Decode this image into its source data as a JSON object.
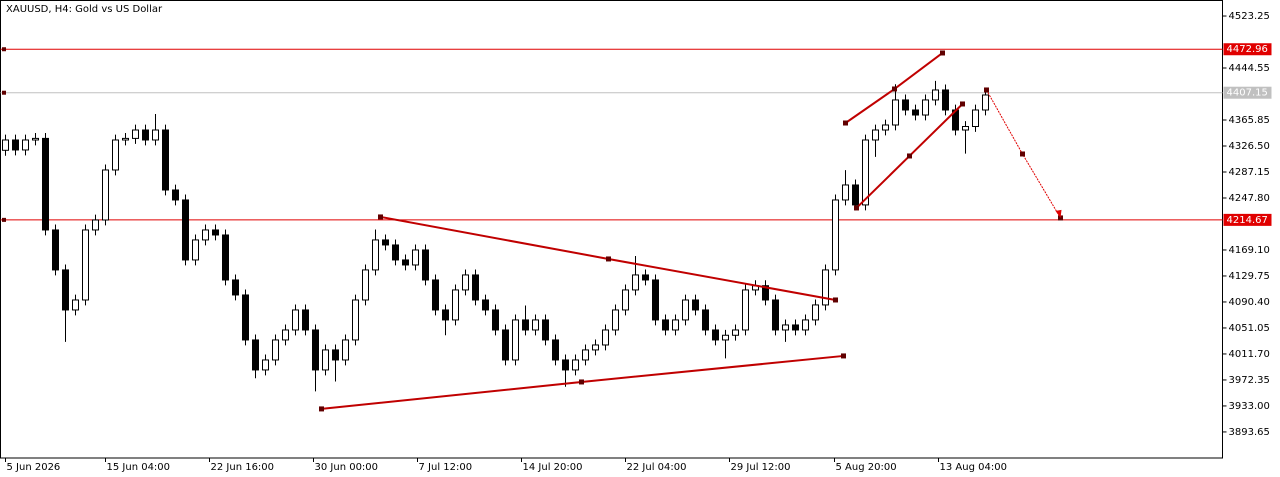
{
  "chart_data": {
    "type": "candlestick",
    "title": "XAUUSD, H4:  Gold vs US Dollar",
    "xlim": [
      -0.5,
      121.7
    ],
    "xticks": [
      {
        "value": 0,
        "label": "5 Jun 2026"
      },
      {
        "value": 10,
        "label": "15 Jun 04:00"
      },
      {
        "value": 20.4,
        "label": "22 Jun 16:00"
      },
      {
        "value": 30.8,
        "label": "30 Jun 00:00"
      },
      {
        "value": 41.2,
        "label": "7 Jul 12:00"
      },
      {
        "value": 51.6,
        "label": "14 Jul 20:00"
      },
      {
        "value": 62,
        "label": "22 Jul 04:00"
      },
      {
        "value": 72.4,
        "label": "29 Jul 12:00"
      },
      {
        "value": 82.9,
        "label": "5 Aug 20:00"
      },
      {
        "value": 93.3,
        "label": "13 Aug 04:00"
      }
    ],
    "ylim": [
      3854.2,
      4547.5
    ],
    "yticks": [
      4523.25,
      4444.55,
      4365.85,
      {
        "value": 4326.5,
        "label": "4326.50"
      },
      4287.15,
      {
        "value": 4247.8,
        "label": "4247.80"
      },
      {
        "value": 4169.1,
        "label": "4169.10"
      },
      4129.75,
      {
        "value": 4090.4,
        "label": "4090.40"
      },
      4051.05,
      {
        "value": 4011.7,
        "label": "4011.70"
      },
      3972.35,
      {
        "value": 3933,
        "label": "3933.00"
      },
      3893.65
    ],
    "up_color": "#ffffff",
    "down_color": "#000000",
    "open": [
      4320.0,
      4335.6,
      4320.5,
      4335.6,
      4338.0,
      4199.4,
      4138.9,
      4078.3,
      4093.4,
      4199.4,
      4214.5,
      4290.2,
      4335.6,
      4338.0,
      4350.7,
      4335.6,
      4350.7,
      4259.9,
      4244.8,
      4154.0,
      4184.3,
      4199.4,
      4191.8,
      4123.7,
      4101.0,
      4032.9,
      3987.5,
      4002.6,
      4032.9,
      4048.0,
      4078.3,
      4048.0,
      3987.5,
      4017.8,
      4002.6,
      4032.9,
      4093.4,
      4138.9,
      4184.3,
      4176.7,
      4154.0,
      4146.4,
      4169.1,
      4123.7,
      4078.3,
      4063.2,
      4108.6,
      4131.3,
      4093.4,
      4078.3,
      4048.0,
      4002.6,
      4063.2,
      4048.0,
      4063.2,
      4032.9,
      4002.6,
      3987.5,
      4002.6,
      4017.8,
      4025.3,
      4048.0,
      4078.3,
      4108.6,
      4131.3,
      4123.7,
      4063.2,
      4048.0,
      4063.2,
      4093.4,
      4078.3,
      4048.0,
      4032.9,
      4040.0,
      4048.0,
      4108.6,
      4115.0,
      4093.4,
      4048.0,
      4055.6,
      4048.0,
      4063.2,
      4085.9,
      4138.9,
      4244.8,
      4267.5,
      4237.3,
      4335.6,
      4350.7,
      4358.3,
      4396.2,
      4381.0,
      4373.4,
      4396.2,
      4411.3,
      4381.0,
      4350.7,
      4356.0,
      4381.0
    ],
    "high": [
      4343.8,
      4343.8,
      4343.8,
      4346.2,
      4346.2,
      4207.6,
      4147.1,
      4101.6,
      4207.6,
      4222.7,
      4298.4,
      4343.8,
      4346.2,
      4358.9,
      4358.9,
      4375.0,
      4358.9,
      4268.1,
      4253.0,
      4192.5,
      4207.6,
      4207.6,
      4200.0,
      4131.9,
      4109.2,
      4041.1,
      4010.8,
      4041.1,
      4056.2,
      4086.5,
      4086.5,
      4056.2,
      4026.0,
      4026.0,
      4041.1,
      4101.6,
      4147.1,
      4200.0,
      4192.5,
      4184.9,
      4162.2,
      4177.3,
      4177.3,
      4131.9,
      4086.5,
      4116.8,
      4139.5,
      4139.5,
      4101.6,
      4086.5,
      4056.2,
      4071.4,
      4085.0,
      4071.4,
      4071.4,
      4041.1,
      4010.8,
      4010.8,
      4026.0,
      4033.5,
      4056.2,
      4086.5,
      4116.8,
      4160.0,
      4139.5,
      4131.9,
      4071.4,
      4071.4,
      4101.6,
      4101.6,
      4086.5,
      4056.2,
      4048.2,
      4056.2,
      4116.8,
      4123.2,
      4123.2,
      4101.6,
      4063.8,
      4063.8,
      4071.4,
      4094.1,
      4147.1,
      4253.0,
      4290.0,
      4275.7,
      4343.8,
      4358.9,
      4366.5,
      4420.0,
      4404.4,
      4389.2,
      4404.4,
      4425.0,
      4419.5,
      4389.2,
      4364.2,
      4389.2,
      4411.9
    ],
    "low": [
      4311.8,
      4312.3,
      4312.3,
      4327.4,
      4191.2,
      4130.7,
      4030.0,
      4070.1,
      4085.2,
      4191.2,
      4206.3,
      4282.0,
      4327.4,
      4329.8,
      4327.4,
      4327.4,
      4251.7,
      4236.6,
      4145.8,
      4145.8,
      4176.1,
      4183.6,
      4115.5,
      4092.8,
      4024.7,
      3975.0,
      3979.3,
      3994.4,
      4024.7,
      4039.8,
      4039.8,
      3955.0,
      3979.3,
      3970.0,
      3994.4,
      4024.7,
      4085.2,
      4130.7,
      4168.5,
      4145.8,
      4138.2,
      4138.2,
      4115.5,
      4070.1,
      4040.0,
      4055.0,
      4100.4,
      4085.2,
      4070.1,
      4039.8,
      3994.4,
      3994.4,
      4039.8,
      4039.8,
      4024.7,
      3994.4,
      3962.0,
      3979.3,
      3994.4,
      4009.6,
      4017.1,
      4039.8,
      4070.1,
      4100.4,
      4115.5,
      4055.0,
      4039.8,
      4039.8,
      4055.0,
      4070.1,
      4039.8,
      4024.7,
      4005.0,
      4031.8,
      4039.8,
      4100.4,
      4085.2,
      4039.8,
      4030.0,
      4039.8,
      4039.8,
      4055.0,
      4077.7,
      4130.7,
      4236.6,
      4229.1,
      4229.1,
      4310.0,
      4342.5,
      4350.1,
      4372.8,
      4365.2,
      4365.2,
      4388.0,
      4372.8,
      4342.5,
      4315.0,
      4347.8,
      4372.8
    ],
    "close": [
      4335.6,
      4320.5,
      4335.6,
      4338.0,
      4199.4,
      4138.9,
      4078.3,
      4093.4,
      4199.4,
      4214.5,
      4290.2,
      4335.6,
      4338.0,
      4350.7,
      4335.6,
      4350.7,
      4259.9,
      4244.8,
      4154.0,
      4184.3,
      4199.4,
      4191.8,
      4123.7,
      4101.0,
      4032.9,
      3987.5,
      4002.6,
      4032.9,
      4048.0,
      4078.3,
      4048.0,
      3987.5,
      4017.8,
      4002.6,
      4032.9,
      4093.4,
      4138.9,
      4184.3,
      4176.7,
      4154.0,
      4146.4,
      4169.1,
      4123.7,
      4078.3,
      4063.2,
      4108.6,
      4131.3,
      4093.4,
      4078.3,
      4048.0,
      4002.6,
      4063.2,
      4048.0,
      4063.2,
      4032.9,
      4002.6,
      3987.5,
      4002.6,
      4017.8,
      4025.3,
      4048.0,
      4078.3,
      4108.6,
      4131.3,
      4123.7,
      4063.2,
      4048.0,
      4063.2,
      4093.4,
      4078.3,
      4048.0,
      4032.9,
      4040.0,
      4048.0,
      4108.6,
      4115.0,
      4093.4,
      4048.0,
      4055.6,
      4048.0,
      4063.2,
      4085.9,
      4138.9,
      4244.8,
      4267.5,
      4237.3,
      4335.6,
      4350.7,
      4358.3,
      4396.2,
      4381.0,
      4373.4,
      4396.2,
      4411.3,
      4381.0,
      4350.7,
      4356.0,
      4381.0,
      4403.7
    ],
    "hlines": [
      {
        "value": 4472.96,
        "color": "#e00000"
      },
      {
        "value": 4214.67,
        "color": "#e00000"
      },
      {
        "value": 4407.15,
        "color": "#c0c0c0"
      }
    ],
    "trendlines": [
      {
        "color": "#c00000",
        "x": [
          37.5,
          60.3,
          83
        ],
        "y": [
          4219.1,
          4155.5,
          4093.4
        ]
      },
      {
        "color": "#c00000",
        "x": [
          31.6,
          57.6,
          83.8
        ],
        "y": [
          3928.5,
          3969.3,
          4008.7
        ]
      },
      {
        "color": "#c00000",
        "x": [
          84,
          88.9,
          93.7
        ],
        "y": [
          4361.3,
          4412.8,
          4467.3
        ]
      },
      {
        "color": "#c00000",
        "x": [
          85.1,
          90.4,
          95.7
        ],
        "y": [
          4232.7,
          4311.4,
          4390.1
        ]
      }
    ],
    "arrow": {
      "color": "#e00000",
      "x": [
        98.1,
        101.7,
        105.5
      ],
      "y": [
        4411.3,
        4314.4,
        4217.6
      ]
    }
  }
}
